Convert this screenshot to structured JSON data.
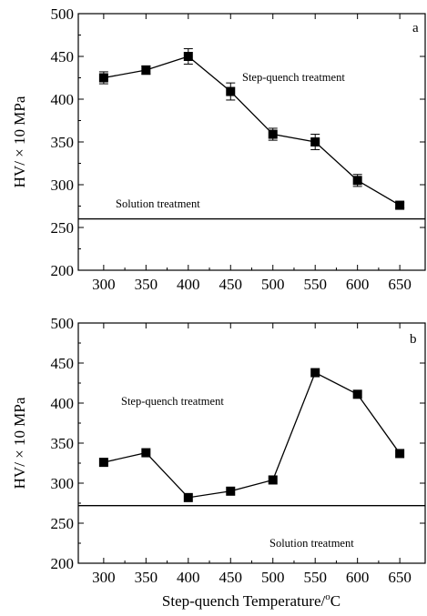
{
  "chart_data": [
    {
      "type": "line",
      "panel_label": "a",
      "x": [
        300,
        350,
        400,
        450,
        500,
        550,
        600,
        650
      ],
      "series": [
        {
          "values": [
            425,
            434,
            450,
            409,
            359,
            350,
            305,
            276
          ],
          "errors": [
            7,
            5,
            9,
            10,
            7,
            9,
            7,
            3
          ],
          "marker": "square",
          "color": "#000000"
        }
      ],
      "reference_line": {
        "value": 260,
        "label": "Solution treatment"
      },
      "annotation": "Step-quench treatment",
      "xlim": [
        270,
        680
      ],
      "ylim": [
        200,
        500
      ],
      "xticks": [
        "300",
        "350",
        "400",
        "450",
        "500",
        "550",
        "600",
        "650"
      ],
      "yticks": [
        "200",
        "250",
        "300",
        "350",
        "400",
        "450",
        "500"
      ],
      "ylabel": "HV/ × 10 MPa",
      "xlabel": ""
    },
    {
      "type": "line",
      "panel_label": "b",
      "x": [
        300,
        350,
        400,
        450,
        500,
        550,
        600,
        650
      ],
      "series": [
        {
          "values": [
            326,
            338,
            282,
            290,
            304,
            438,
            411,
            337
          ],
          "marker": "square",
          "color": "#000000"
        }
      ],
      "reference_line": {
        "value": 272,
        "label": "Solution treatment"
      },
      "annotation": "Step-quench treatment",
      "xlim": [
        270,
        680
      ],
      "ylim": [
        200,
        500
      ],
      "xticks": [
        "300",
        "350",
        "400",
        "450",
        "500",
        "550",
        "600",
        "650"
      ],
      "yticks": [
        "200",
        "250",
        "300",
        "350",
        "400",
        "450",
        "500"
      ],
      "ylabel": "HV/ × 10 MPa",
      "xlabel_text": "Step-quench Temperature/",
      "xlabel_superscript": "o",
      "xlabel_unit": "C"
    }
  ]
}
